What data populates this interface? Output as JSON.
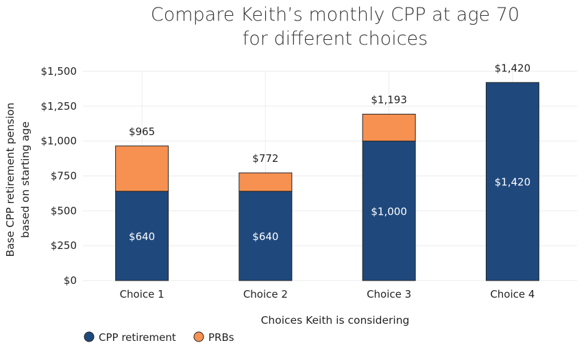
{
  "chart_data": {
    "type": "bar",
    "stacked": true,
    "title": [
      "Compare Keith’s monthly CPP at age 70",
      "for different choices"
    ],
    "xlabel": "Choices Keith is considering",
    "ylabel": [
      "Base CPP retirement pension",
      "based on starting age"
    ],
    "categories": [
      "Choice 1",
      "Choice 2",
      "Choice 3",
      "Choice 4"
    ],
    "ylim": [
      0,
      1500
    ],
    "yticks": [
      {
        "value": 0,
        "label": "$0"
      },
      {
        "value": 250,
        "label": "$250"
      },
      {
        "value": 500,
        "label": "$500"
      },
      {
        "value": 750,
        "label": "$750"
      },
      {
        "value": 1000,
        "label": "$1,000"
      },
      {
        "value": 1250,
        "label": "$1,250"
      },
      {
        "value": 1500,
        "label": "$1,500"
      }
    ],
    "grid": true,
    "legend_position": "bottom-left",
    "series": [
      {
        "name": "CPP retirement",
        "color": "#1f497d",
        "values": [
          640,
          640,
          1000,
          1420
        ],
        "labels": [
          "$640",
          "$640",
          "$1,000",
          "$1,420"
        ]
      },
      {
        "name": "PRBs",
        "color": "#f79151",
        "values": [
          325,
          132,
          193,
          0
        ],
        "labels": [
          "",
          "",
          "",
          ""
        ]
      }
    ],
    "totals": [
      965,
      772,
      1193,
      1420
    ],
    "total_labels": [
      "$965",
      "$772",
      "$1,193",
      "$1,420"
    ]
  }
}
